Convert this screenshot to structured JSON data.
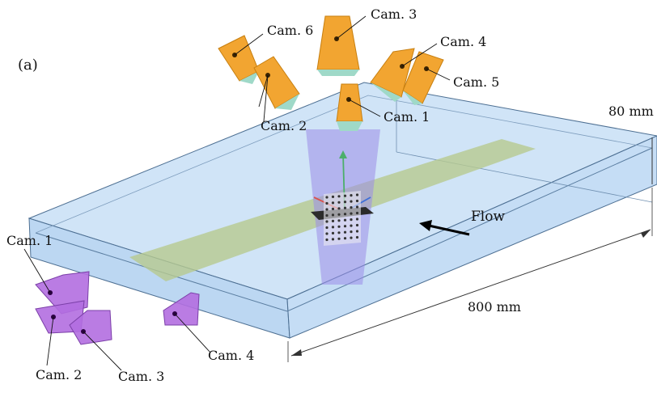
{
  "figure": {
    "panel_label": "(a)",
    "flow_label": "Flow",
    "dimensions": {
      "width": "800 mm",
      "height": "80 mm"
    },
    "top_cameras": [
      "Cam. 1",
      "Cam. 2",
      "Cam. 3",
      "Cam. 4",
      "Cam. 5",
      "Cam. 6"
    ],
    "bottom_cameras": [
      "Cam. 1",
      "Cam. 2",
      "Cam. 3",
      "Cam. 4"
    ]
  },
  "colors": {
    "water": "#a9cdf0",
    "tank_edge": "#3f5f7f",
    "sheet": "#b7c98f",
    "laser": "#9b8de8",
    "top_camera": "#f2a531",
    "bottom_camera": "#b26ee0"
  }
}
